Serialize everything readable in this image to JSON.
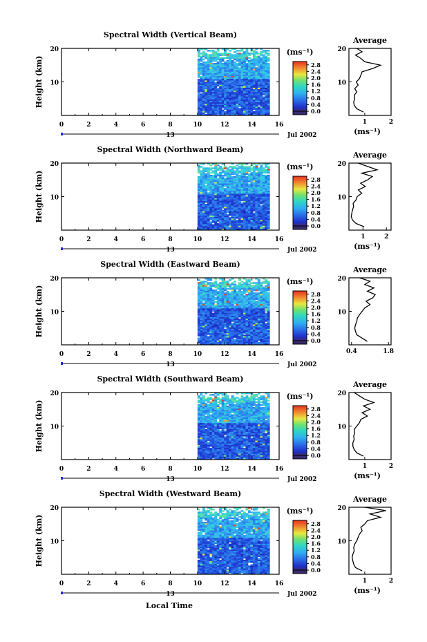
{
  "figure": {
    "xlabel_bottom": "Local Time",
    "date_label": "Jul 2002",
    "day_label": "13"
  },
  "chart_data": [
    {
      "type": "heatmap",
      "title": "Spectral Width (Vertical Beam)",
      "ylabel": "Height (km)",
      "x_ticks": [
        "0",
        "2",
        "4",
        "6",
        "8",
        "10",
        "12",
        "14",
        "16"
      ],
      "y_ticks": [
        "10",
        "20"
      ],
      "xlim": [
        0,
        16
      ],
      "ylim": [
        0,
        20
      ],
      "data_start_hour": 10,
      "data_end_hour": 15.3,
      "colorbar": {
        "unit": "(ms⁻¹)",
        "ticks": [
          "2.8",
          "2.4",
          "2.0",
          "1.6",
          "1.2",
          "0.8",
          "0.4",
          "0.0"
        ],
        "vmin": 0.0,
        "vmax": 3.0
      },
      "average": {
        "title": "Average",
        "xlabel": "(ms⁻¹)",
        "x_ticks": [
          "1",
          "2"
        ],
        "xlim": [
          0.4,
          2.0
        ],
        "y_ticks": [
          "10",
          "20"
        ],
        "profile": [
          [
            1,
            0.95
          ],
          [
            2,
            0.7
          ],
          [
            3,
            0.6
          ],
          [
            4,
            0.58
          ],
          [
            5,
            0.62
          ],
          [
            6,
            0.6
          ],
          [
            7,
            0.7
          ],
          [
            8,
            0.62
          ],
          [
            9,
            0.75
          ],
          [
            10,
            0.68
          ],
          [
            11,
            0.8
          ],
          [
            12,
            0.85
          ],
          [
            13,
            0.9
          ],
          [
            14,
            1.3
          ],
          [
            15,
            1.6
          ],
          [
            16,
            1.0
          ],
          [
            17,
            0.85
          ],
          [
            18,
            0.65
          ],
          [
            19,
            0.9
          ],
          [
            20,
            0.7
          ]
        ]
      }
    },
    {
      "type": "heatmap",
      "title": "Spectral Width (Northward Beam)",
      "ylabel": "Height (km)",
      "x_ticks": [
        "0",
        "2",
        "4",
        "6",
        "8",
        "10",
        "12",
        "14",
        "16"
      ],
      "y_ticks": [
        "10",
        "20"
      ],
      "xlim": [
        0,
        16
      ],
      "ylim": [
        0,
        20
      ],
      "data_start_hour": 10,
      "data_end_hour": 15.3,
      "colorbar": {
        "unit": "(ms⁻¹)",
        "ticks": [
          "2.8",
          "2.4",
          "2.0",
          "1.6",
          "1.2",
          "0.8",
          "0.4",
          "0.0"
        ],
        "vmin": 0.0,
        "vmax": 3.0
      },
      "average": {
        "title": "Average",
        "xlabel": "(ms⁻¹)",
        "x_ticks": [
          "1",
          "2"
        ],
        "xlim": [
          0.4,
          2.2
        ],
        "y_ticks": [
          "10",
          "20"
        ],
        "profile": [
          [
            1,
            1.05
          ],
          [
            2,
            0.7
          ],
          [
            3,
            0.55
          ],
          [
            4,
            0.5
          ],
          [
            5,
            0.52
          ],
          [
            6,
            0.55
          ],
          [
            7,
            0.6
          ],
          [
            8,
            0.58
          ],
          [
            9,
            0.7
          ],
          [
            10,
            0.75
          ],
          [
            11,
            0.95
          ],
          [
            12,
            0.8
          ],
          [
            13,
            1.1
          ],
          [
            14,
            0.9
          ],
          [
            15,
            1.2
          ],
          [
            16,
            1.4
          ],
          [
            17,
            0.95
          ],
          [
            18,
            1.6
          ],
          [
            19,
            1.2
          ],
          [
            20,
            0.8
          ]
        ]
      }
    },
    {
      "type": "heatmap",
      "title": "Spectral Width (Eastward Beam)",
      "ylabel": "Height (km)",
      "x_ticks": [
        "0",
        "2",
        "4",
        "6",
        "8",
        "10",
        "12",
        "14",
        "16"
      ],
      "y_ticks": [
        "10",
        "20"
      ],
      "xlim": [
        0,
        16
      ],
      "ylim": [
        0,
        20
      ],
      "data_start_hour": 10,
      "data_end_hour": 15.3,
      "colorbar": {
        "unit": "(ms⁻¹)",
        "ticks": [
          "2.8",
          "2.4",
          "2.0",
          "1.6",
          "1.2",
          "0.8",
          "0.4",
          "0.0"
        ],
        "vmin": 0.0,
        "vmax": 3.0
      },
      "average": {
        "title": "Average",
        "xlabel": "",
        "x_ticks": [
          "0.4",
          "1.8"
        ],
        "xlim": [
          0.3,
          1.9
        ],
        "y_ticks": [
          "10",
          "20"
        ],
        "profile": [
          [
            1,
            1.0
          ],
          [
            2,
            0.8
          ],
          [
            3,
            0.6
          ],
          [
            4,
            0.55
          ],
          [
            5,
            0.52
          ],
          [
            6,
            0.55
          ],
          [
            7,
            0.6
          ],
          [
            8,
            0.62
          ],
          [
            9,
            0.7
          ],
          [
            10,
            0.8
          ],
          [
            11,
            0.9
          ],
          [
            12,
            1.1
          ],
          [
            13,
            0.95
          ],
          [
            14,
            1.2
          ],
          [
            15,
            1.3
          ],
          [
            16,
            1.0
          ],
          [
            17,
            1.25
          ],
          [
            18,
            0.9
          ],
          [
            19,
            1.1
          ],
          [
            20,
            0.7
          ]
        ]
      }
    },
    {
      "type": "heatmap",
      "title": "Spectral Width (Southward Beam)",
      "ylabel": "Height (km)",
      "x_ticks": [
        "0",
        "2",
        "4",
        "6",
        "8",
        "10",
        "12",
        "14",
        "16"
      ],
      "y_ticks": [
        "10",
        "20"
      ],
      "xlim": [
        0,
        16
      ],
      "ylim": [
        0,
        20
      ],
      "data_start_hour": 10,
      "data_end_hour": 15.3,
      "colorbar": {
        "unit": "(ms⁻¹)",
        "ticks": [
          "2.8",
          "2.4",
          "2.0",
          "1.6",
          "1.2",
          "0.8",
          "0.4",
          "0.0"
        ],
        "vmin": 0.0,
        "vmax": 3.0
      },
      "average": {
        "title": "Average",
        "xlabel": "(ms⁻¹)",
        "x_ticks": [
          "1",
          "2"
        ],
        "xlim": [
          0.4,
          2.0
        ],
        "y_ticks": [
          "10",
          "20"
        ],
        "profile": [
          [
            1,
            0.95
          ],
          [
            2,
            0.7
          ],
          [
            3,
            0.6
          ],
          [
            4,
            0.55
          ],
          [
            5,
            0.55
          ],
          [
            6,
            0.6
          ],
          [
            7,
            0.58
          ],
          [
            8,
            0.62
          ],
          [
            9,
            0.6
          ],
          [
            10,
            0.7
          ],
          [
            11,
            0.8
          ],
          [
            12,
            0.85
          ],
          [
            13,
            1.1
          ],
          [
            14,
            0.9
          ],
          [
            15,
            1.2
          ],
          [
            16,
            0.95
          ],
          [
            17,
            1.35
          ],
          [
            18,
            1.0
          ],
          [
            19,
            0.8
          ],
          [
            20,
            0.6
          ]
        ]
      }
    },
    {
      "type": "heatmap",
      "title": "Spectral Width (Westward Beam)",
      "ylabel": "Height (km)",
      "x_ticks": [
        "0",
        "2",
        "4",
        "6",
        "8",
        "10",
        "12",
        "14",
        "16"
      ],
      "y_ticks": [
        "10",
        "20"
      ],
      "xlim": [
        0,
        16
      ],
      "ylim": [
        0,
        20
      ],
      "data_start_hour": 10,
      "data_end_hour": 15.3,
      "colorbar": {
        "unit": "(ms⁻¹)",
        "ticks": [
          "2.8",
          "2.4",
          "2.0",
          "1.6",
          "1.2",
          "0.8",
          "0.4",
          "0.0"
        ],
        "vmin": 0.0,
        "vmax": 3.0
      },
      "average": {
        "title": "Average",
        "xlabel": "(ms⁻¹)",
        "x_ticks": [
          "1",
          "2"
        ],
        "xlim": [
          0.4,
          2.0
        ],
        "y_ticks": [
          "10",
          "20"
        ],
        "profile": [
          [
            1,
            0.9
          ],
          [
            2,
            0.65
          ],
          [
            3,
            0.58
          ],
          [
            4,
            0.55
          ],
          [
            5,
            0.52
          ],
          [
            6,
            0.55
          ],
          [
            7,
            0.6
          ],
          [
            8,
            0.58
          ],
          [
            9,
            0.62
          ],
          [
            10,
            0.7
          ],
          [
            11,
            0.75
          ],
          [
            12,
            0.8
          ],
          [
            13,
            0.9
          ],
          [
            14,
            0.85
          ],
          [
            15,
            1.0
          ],
          [
            16,
            1.1
          ],
          [
            17,
            1.6
          ],
          [
            18,
            1.2
          ],
          [
            19,
            1.8
          ],
          [
            20,
            1.0
          ]
        ]
      }
    }
  ]
}
